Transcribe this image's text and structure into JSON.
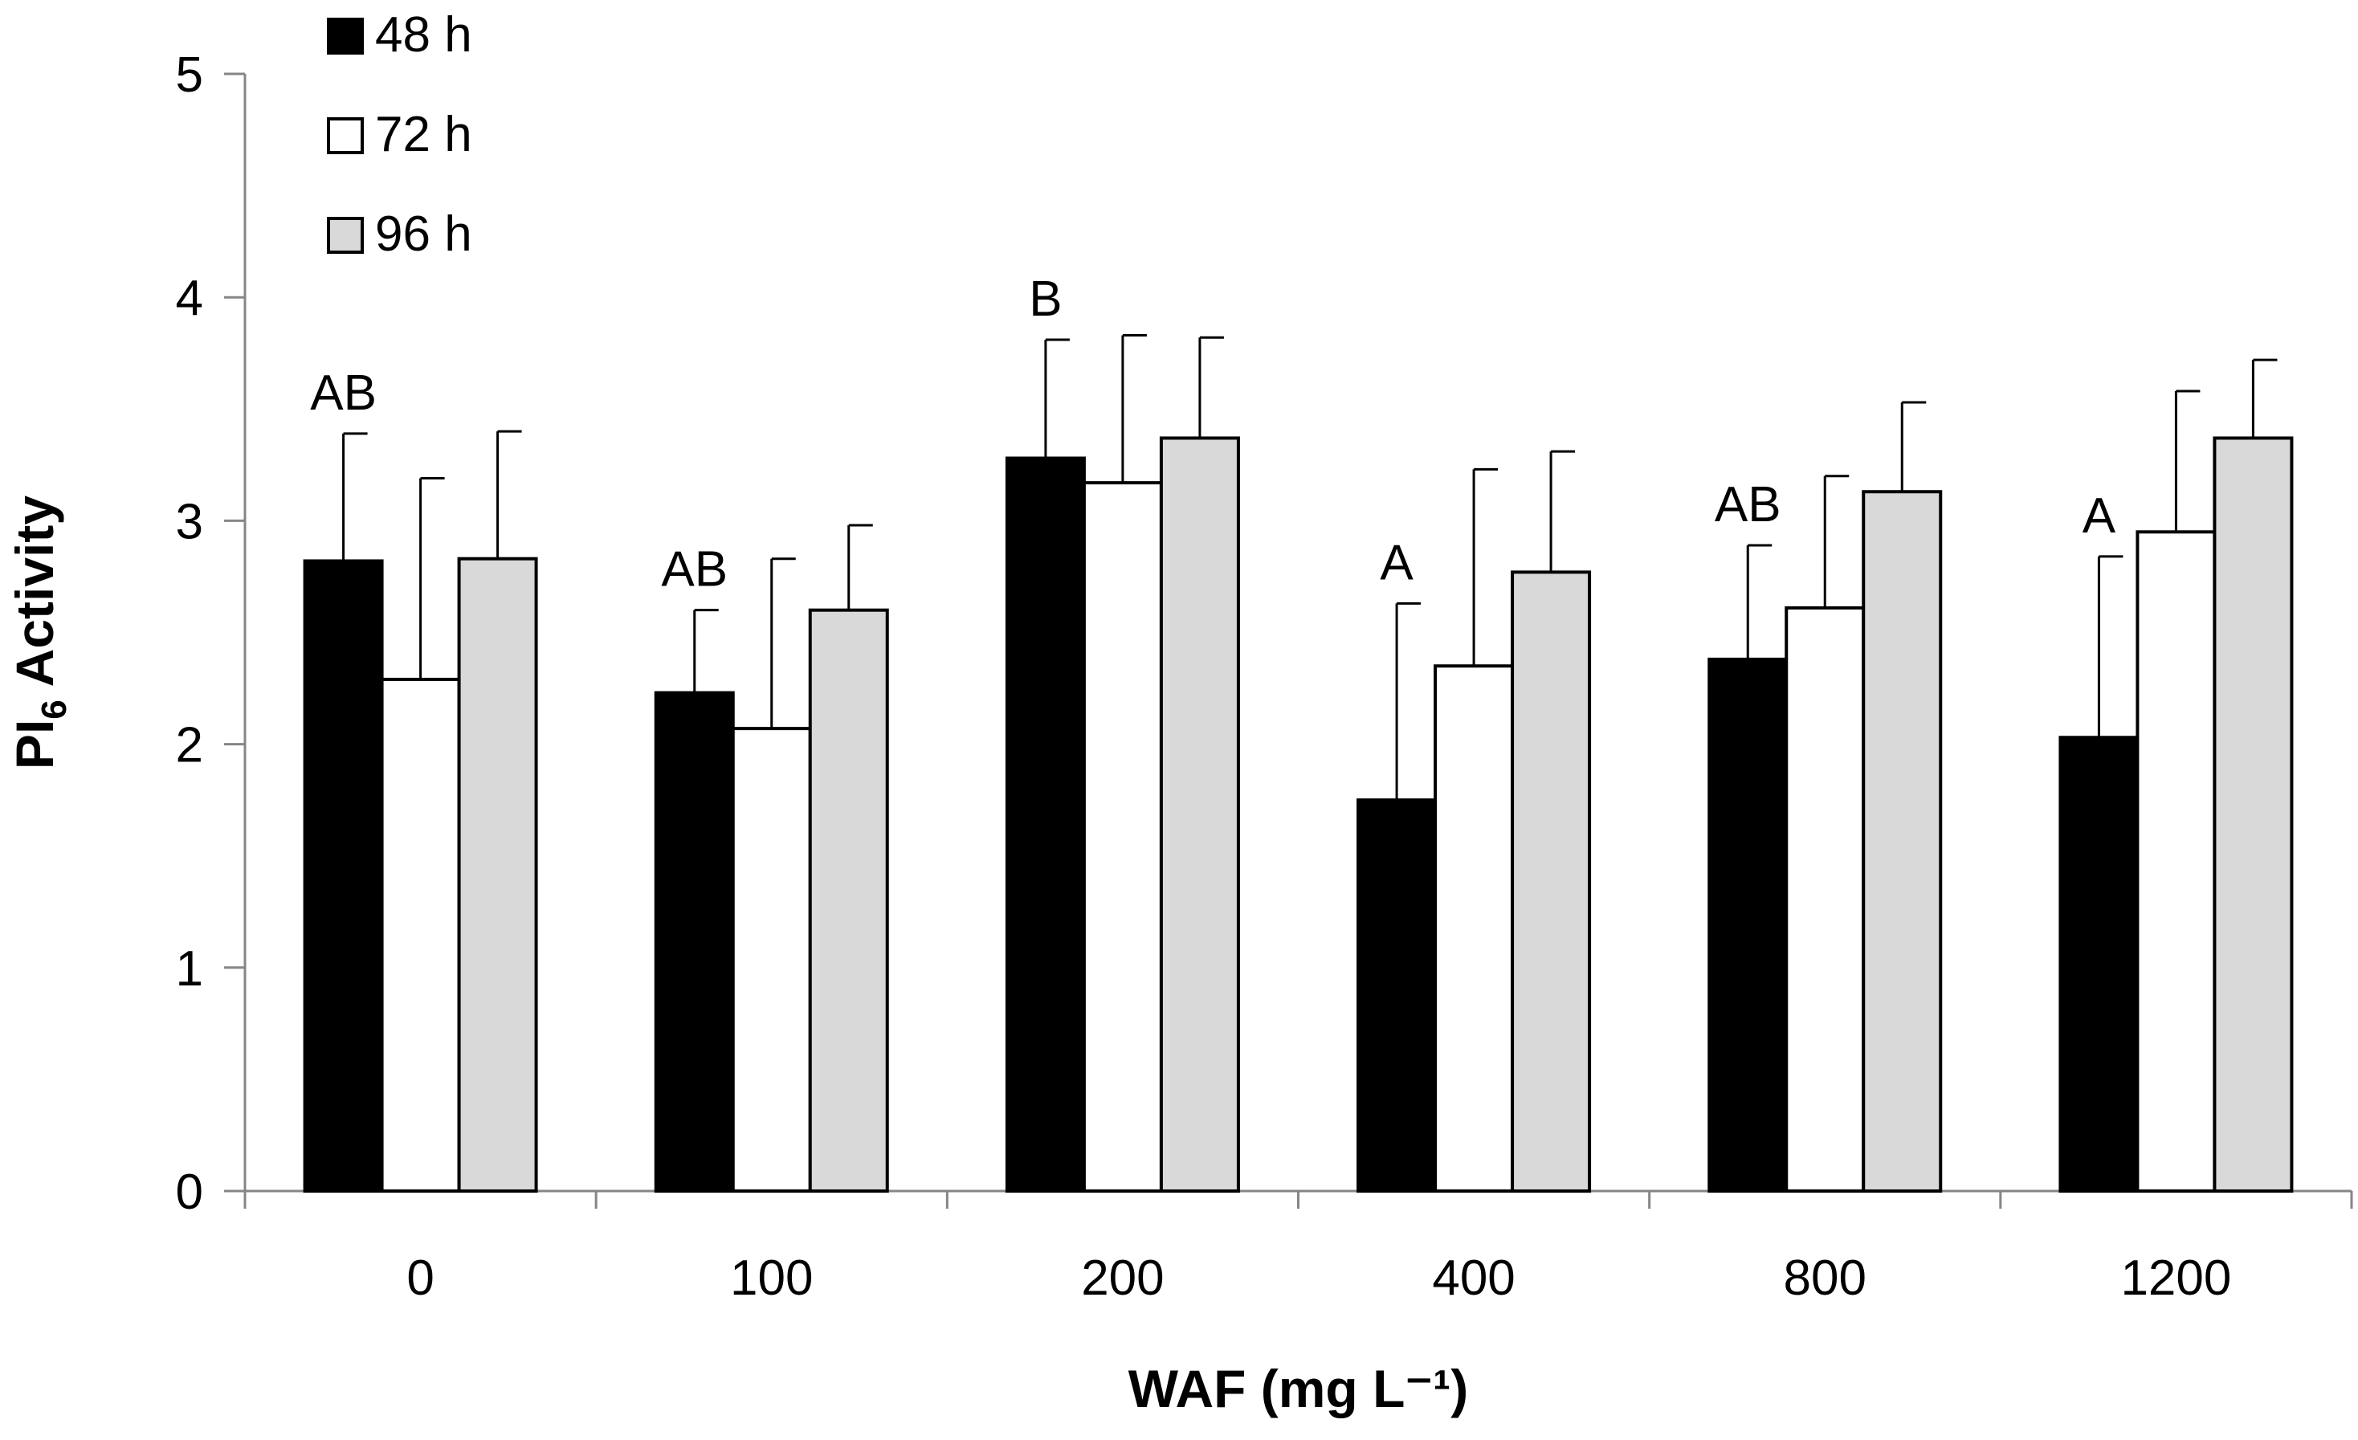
{
  "chart_data": {
    "type": "bar",
    "title": "",
    "xlabel": "WAF (mg L⁻¹)",
    "ylabel": "PI",
    "ylabel_sub": "6",
    "ylabel_rest": " Activity",
    "categories": [
      "0",
      "100",
      "200",
      "400",
      "800",
      "1200"
    ],
    "ylim": [
      0,
      5
    ],
    "yticks": [
      0,
      1,
      2,
      3,
      4,
      5
    ],
    "grid": false,
    "legend_position": "top-left",
    "series": [
      {
        "name": "48 h",
        "color": "#000000",
        "values": [
          2.82,
          2.23,
          3.28,
          1.75,
          2.38,
          2.03
        ],
        "errors": [
          0.57,
          0.37,
          0.53,
          0.88,
          0.51,
          0.81
        ]
      },
      {
        "name": "72 h",
        "color": "#ffffff",
        "values": [
          2.29,
          2.07,
          3.17,
          2.35,
          2.61,
          2.95
        ],
        "errors": [
          0.9,
          0.76,
          0.66,
          0.88,
          0.59,
          0.63
        ]
      },
      {
        "name": "96 h",
        "color": "#d9d9d9",
        "values": [
          2.83,
          2.6,
          3.37,
          2.77,
          3.13,
          3.37
        ],
        "errors": [
          0.57,
          0.38,
          0.45,
          0.54,
          0.4,
          0.35
        ]
      }
    ],
    "annotations": [
      "AB",
      "AB",
      "B",
      "A",
      "AB",
      "A"
    ]
  }
}
